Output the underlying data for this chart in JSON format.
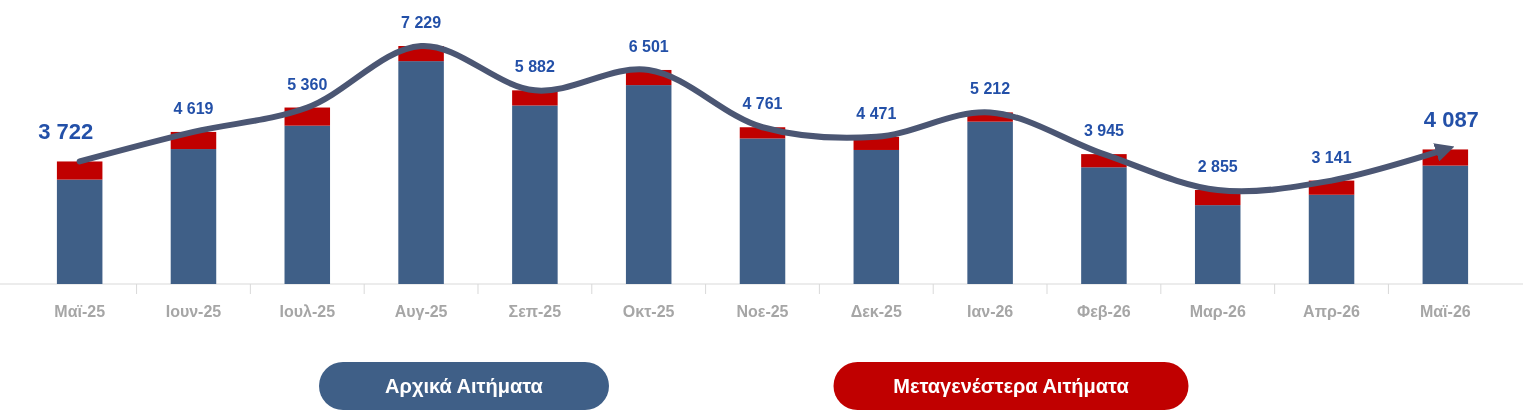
{
  "chart_data": {
    "type": "bar",
    "stacked": true,
    "categories": [
      "Μαϊ-25",
      "Ιουν-25",
      "Ιουλ-25",
      "Αυγ-25",
      "Σεπ-25",
      "Οκτ-25",
      "Νοε-25",
      "Δεκ-25",
      "Ιαν-26",
      "Φεβ-26",
      "Μαρ-26",
      "Απρ-26",
      "Μαϊ-26"
    ],
    "series": [
      {
        "name": "Αρχικά Αιτήματα",
        "color": "#3f5f87",
        "values": [
          3172,
          4099,
          4810,
          6769,
          5422,
          6041,
          4421,
          4071,
          4932,
          3545,
          2395,
          2711,
          3597
        ]
      },
      {
        "name": "Μεταγενέστερα Αιτήματα",
        "color": "#c00000",
        "values": [
          550,
          520,
          550,
          460,
          460,
          460,
          340,
          400,
          280,
          400,
          460,
          430,
          490
        ]
      },
      {
        "type": "line",
        "color": "#4b5673",
        "values": [
          3722,
          4619,
          5360,
          7229,
          5882,
          6501,
          4761,
          4471,
          5212,
          3945,
          2855,
          3141,
          4087
        ],
        "value_labels": [
          "3 722",
          "4 619",
          "5 360",
          "7 229",
          "5 882",
          "6 501",
          "4 761",
          "4 471",
          "5 212",
          "3 945",
          "2 855",
          "3 141",
          "4 087"
        ]
      }
    ],
    "legend": "bottom"
  }
}
